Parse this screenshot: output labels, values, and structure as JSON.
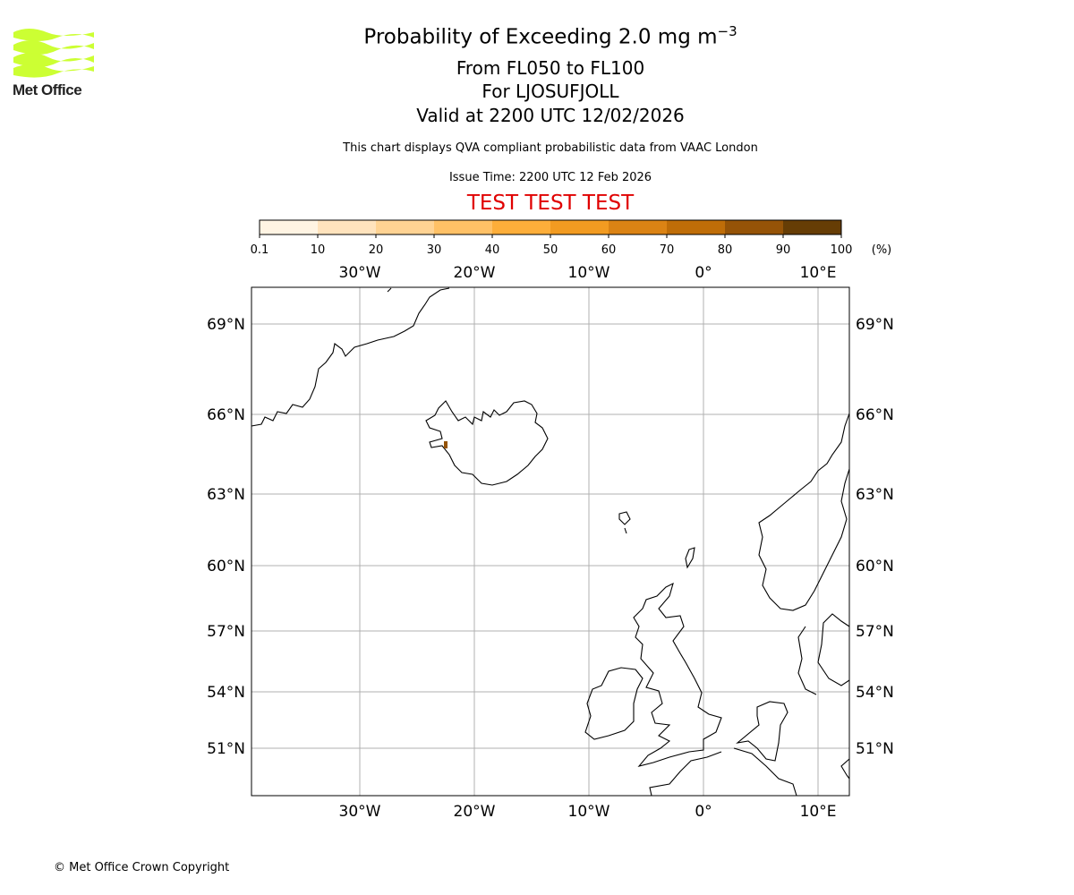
{
  "header": {
    "title": "Probability of Exceeding 2.0 mg m",
    "title_superscript": "−3",
    "level_range": "From FL050 to FL100",
    "volcano": "For LJOSUFJOLL",
    "valid_time": "Valid at 2200 UTC 12/02/2026",
    "disclaimer": "This chart displays QVA compliant probabilistic data from VAAC London",
    "issue_time": "Issue Time: 2200 UTC 12 Feb 2026",
    "test_banner": "TEST TEST TEST",
    "test_color": "#e00000"
  },
  "logo": {
    "text": "Met Office",
    "color": "#ccff33"
  },
  "colorbar": {
    "unit": "(%)",
    "ticks": [
      "0.1",
      "10",
      "20",
      "30",
      "40",
      "50",
      "60",
      "70",
      "80",
      "90",
      "100"
    ],
    "colors": [
      "#fff4e3",
      "#ffe3bd",
      "#ffd393",
      "#ffc166",
      "#fdae3a",
      "#f29b21",
      "#db8314",
      "#bf6d08",
      "#955307",
      "#663d05"
    ]
  },
  "map": {
    "lon_labels": [
      {
        "lon": -30,
        "label": "30°W"
      },
      {
        "lon": -20,
        "label": "20°W"
      },
      {
        "lon": -10,
        "label": "10°W"
      },
      {
        "lon": 0,
        "label": "0°"
      },
      {
        "lon": 10,
        "label": "10°E"
      }
    ],
    "lat_labels": [
      {
        "lat": 69,
        "label": "69°N"
      },
      {
        "lat": 66,
        "label": "66°N"
      },
      {
        "lat": 63,
        "label": "63°N"
      },
      {
        "lat": 60,
        "label": "60°N"
      },
      {
        "lat": 57,
        "label": "57°N"
      },
      {
        "lat": 54,
        "label": "54°N"
      },
      {
        "lat": 51,
        "label": "51°N"
      }
    ],
    "ash_probability_color": "#955307"
  },
  "footer": {
    "copyright": "© Met Office Crown Copyright"
  }
}
